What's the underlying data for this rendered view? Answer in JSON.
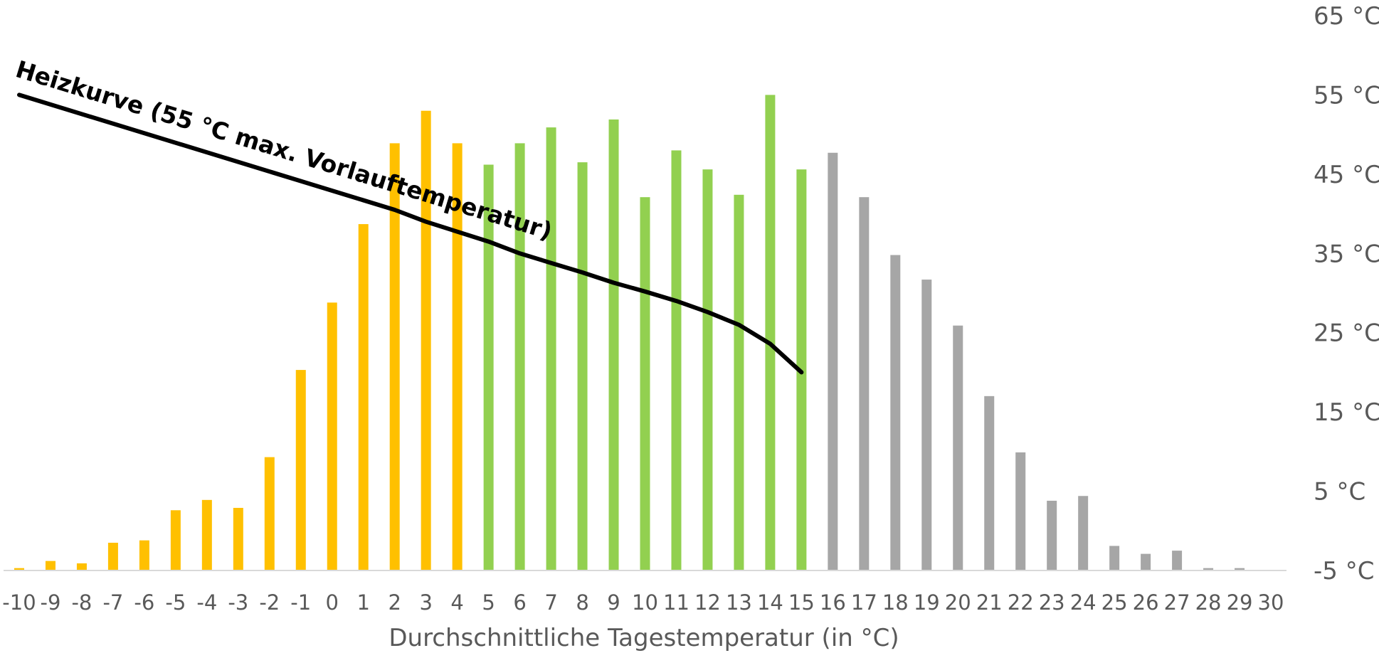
{
  "chart_data": {
    "type": "bar",
    "xlabel": "Durchschnittliche Tagestemperatur (in °C)",
    "categories": [
      "-10",
      "-9",
      "-8",
      "-7",
      "-6",
      "-5",
      "-4",
      "-3",
      "-2",
      "-1",
      "0",
      "1",
      "2",
      "3",
      "4",
      "5",
      "6",
      "7",
      "8",
      "9",
      "10",
      "11",
      "12",
      "13",
      "14",
      "15",
      "16",
      "17",
      "18",
      "19",
      "20",
      "21",
      "22",
      "23",
      "24",
      "25",
      "26",
      "27",
      "28",
      "29",
      "30"
    ],
    "values": [
      0.3,
      1.2,
      0.9,
      3.5,
      3.8,
      7.6,
      8.9,
      7.9,
      14.3,
      25.3,
      33.8,
      43.7,
      53.9,
      58.0,
      53.9,
      51.2,
      53.9,
      55.9,
      51.5,
      56.9,
      47.1,
      53.0,
      50.6,
      47.4,
      60.0,
      50.6,
      52.7,
      47.1,
      39.8,
      36.7,
      30.9,
      22.0,
      14.9,
      8.8,
      9.4,
      3.1,
      2.1,
      2.5,
      0.3,
      0.3,
      0
    ],
    "bar_colors": {
      "orange": "#FFC000",
      "green": "#92D050",
      "gray": "#A6A6A6"
    },
    "color_groups": [
      {
        "color": "orange",
        "from": "-10",
        "to": "4"
      },
      {
        "color": "green",
        "from": "5",
        "to": "15"
      },
      {
        "color": "gray",
        "from": "16",
        "to": "30"
      }
    ],
    "secondary_axis": {
      "position": "right",
      "ticks": [
        "65 °C",
        "55 °C",
        "45 °C",
        "35 °C",
        "25 °C",
        "15 °C",
        "5 °C",
        "-5 °C"
      ],
      "tick_values": [
        65,
        55,
        45,
        35,
        25,
        15,
        5,
        -5
      ],
      "ylim": [
        -5,
        65
      ]
    },
    "heating_curve": {
      "label": "Heizkurve (55 °C max. Vorlauftemperatur)",
      "color": "#000000",
      "points": [
        {
          "x": -10,
          "y": 55.0
        },
        {
          "x": 2,
          "y": 40.5
        },
        {
          "x": 3,
          "y": 39.0
        },
        {
          "x": 5,
          "y": 36.5
        },
        {
          "x": 6,
          "y": 35.0
        },
        {
          "x": 7,
          "y": 33.8
        },
        {
          "x": 8,
          "y": 32.6
        },
        {
          "x": 9,
          "y": 31.3
        },
        {
          "x": 10,
          "y": 30.2
        },
        {
          "x": 11,
          "y": 29.0
        },
        {
          "x": 12,
          "y": 27.6
        },
        {
          "x": 13,
          "y": 26.0
        },
        {
          "x": 14,
          "y": 23.6
        },
        {
          "x": 15,
          "y": 20.0
        }
      ]
    },
    "grid": false,
    "legend": "none"
  }
}
